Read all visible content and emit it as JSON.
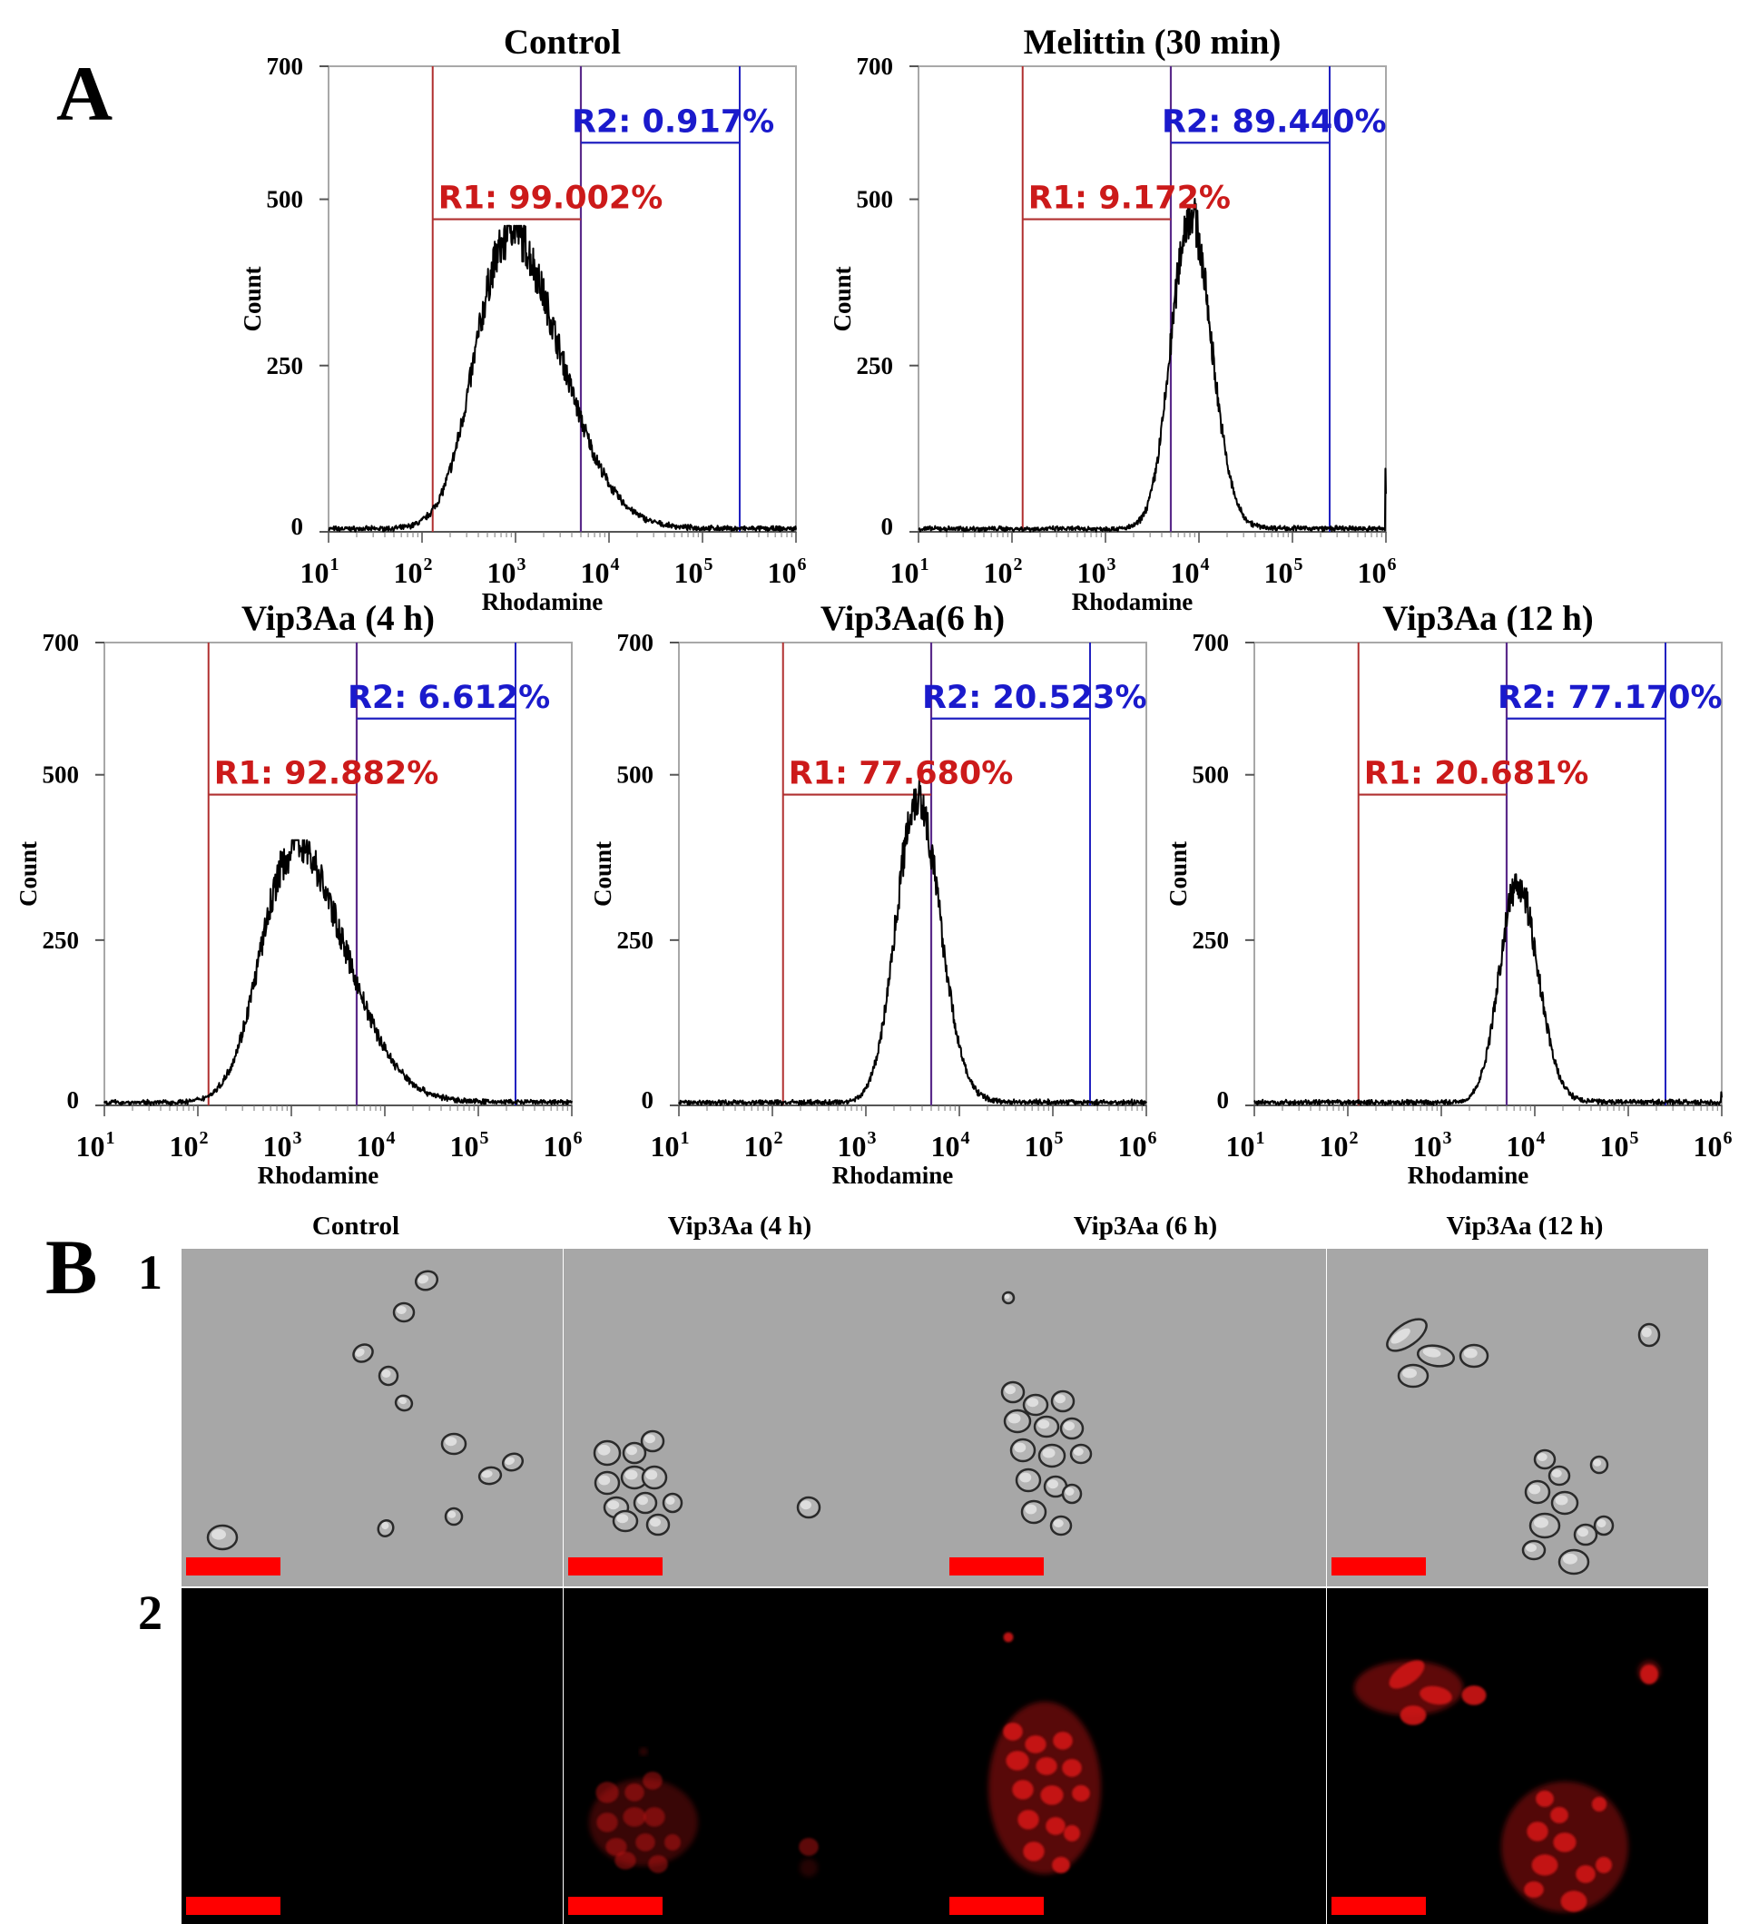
{
  "panel_a": {
    "letter": "A"
  },
  "panel_b": {
    "letter": "B",
    "columns": [
      "Control",
      "Vip3Aa (4 h)",
      "Vip3Aa (6 h)",
      "Vip3Aa (12 h)"
    ],
    "rows": [
      "1",
      "2"
    ],
    "row_descriptions": [
      "bright-field micrographs",
      "rhodamine fluorescence micrographs"
    ]
  },
  "colors": {
    "r1": "#cc1a1a",
    "r1_line": "#b03030",
    "r2": "#1a1acc",
    "r2_line": "#2020c0",
    "histogram": "#000000",
    "scale_bar": "#ff0000",
    "fluorescence": "#d01818"
  },
  "chart_data": [
    {
      "type": "histogram",
      "title": "Control",
      "xlabel": "Rhodamine",
      "ylabel": "Count",
      "x_scale": "log",
      "xlim": [
        10,
        1000000
      ],
      "ylim": [
        0,
        700
      ],
      "yticks": [
        0,
        250,
        500,
        700
      ],
      "xticks": [
        "10",
        "10",
        "10",
        "10",
        "10",
        "10"
      ],
      "xtick_exponents": [
        "1",
        "2",
        "3",
        "4",
        "5",
        "6"
      ],
      "gates": [
        {
          "name": "R1",
          "label": "R1: 99.002%",
          "percent": 99.002,
          "x_range": [
            130,
            5000
          ],
          "marker_y": 470
        },
        {
          "name": "R2",
          "label": "R2: 0.917%",
          "percent": 0.917,
          "x_range": [
            5000,
            250000
          ],
          "marker_y": 585
        }
      ],
      "peak_x": 800,
      "peak_count": 430,
      "spread": 0.34,
      "right_tail": 0.65,
      "end_spike": 0
    },
    {
      "type": "histogram",
      "title": "Melittin (30 min)",
      "xlabel": "Rhodamine",
      "ylabel": "Count",
      "x_scale": "log",
      "xlim": [
        10,
        1000000
      ],
      "ylim": [
        0,
        700
      ],
      "yticks": [
        0,
        250,
        500,
        700
      ],
      "xticks": [
        "10",
        "10",
        "10",
        "10",
        "10",
        "10"
      ],
      "xtick_exponents": [
        "1",
        "2",
        "3",
        "4",
        "5",
        "6"
      ],
      "gates": [
        {
          "name": "R1",
          "label": "R1: 9.172%",
          "percent": 9.172,
          "x_range": [
            130,
            5000
          ],
          "marker_y": 470
        },
        {
          "name": "R2",
          "label": "R2: 89.440%",
          "percent": 89.44,
          "x_range": [
            5000,
            250000
          ],
          "marker_y": 585
        }
      ],
      "peak_x": 8000,
      "peak_count": 470,
      "spread": 0.2,
      "right_tail": 0.12,
      "end_spike": 95
    },
    {
      "type": "histogram",
      "title": "Vip3Aa (4 h)",
      "xlabel": "Rhodamine",
      "ylabel": "Count",
      "x_scale": "log",
      "xlim": [
        10,
        1000000
      ],
      "ylim": [
        0,
        700
      ],
      "yticks": [
        0,
        250,
        500,
        700
      ],
      "xticks": [
        "10",
        "10",
        "10",
        "10",
        "10",
        "10"
      ],
      "xtick_exponents": [
        "1",
        "2",
        "3",
        "4",
        "5",
        "6"
      ],
      "gates": [
        {
          "name": "R1",
          "label": "R1: 92.882%",
          "percent": 92.882,
          "x_range": [
            130,
            5000
          ],
          "marker_y": 470
        },
        {
          "name": "R2",
          "label": "R2: 6.612%",
          "percent": 6.612,
          "x_range": [
            5000,
            250000
          ],
          "marker_y": 585
        }
      ],
      "peak_x": 1000,
      "peak_count": 375,
      "spread": 0.33,
      "right_tail": 0.7,
      "end_spike": 0
    },
    {
      "type": "histogram",
      "title": "Vip3Aa(6 h)",
      "xlabel": "Rhodamine",
      "ylabel": "Count",
      "x_scale": "log",
      "xlim": [
        10,
        1000000
      ],
      "ylim": [
        0,
        700
      ],
      "yticks": [
        0,
        250,
        500,
        700
      ],
      "xticks": [
        "10",
        "10",
        "10",
        "10",
        "10",
        "10"
      ],
      "xtick_exponents": [
        "1",
        "2",
        "3",
        "4",
        "5",
        "6"
      ],
      "gates": [
        {
          "name": "R1",
          "label": "R1: 77.680%",
          "percent": 77.68,
          "x_range": [
            130,
            5000
          ],
          "marker_y": 470
        },
        {
          "name": "R2",
          "label": "R2: 20.523%",
          "percent": 20.523,
          "x_range": [
            5000,
            250000
          ],
          "marker_y": 585
        }
      ],
      "peak_x": 3500,
      "peak_count": 460,
      "spread": 0.22,
      "right_tail": 0.12,
      "end_spike": 0
    },
    {
      "type": "histogram",
      "title": "Vip3Aa (12 h)",
      "xlabel": "Rhodamine",
      "ylabel": "Count",
      "x_scale": "log",
      "xlim": [
        10,
        1000000
      ],
      "ylim": [
        0,
        700
      ],
      "yticks": [
        0,
        250,
        500,
        700
      ],
      "xticks": [
        "10",
        "10",
        "10",
        "10",
        "10",
        "10"
      ],
      "xtick_exponents": [
        "1",
        "2",
        "3",
        "4",
        "5",
        "6"
      ],
      "gates": [
        {
          "name": "R1",
          "label": "R1: 20.681%",
          "percent": 20.681,
          "x_range": [
            130,
            5000
          ],
          "marker_y": 470
        },
        {
          "name": "R2",
          "label": "R2: 77.170%",
          "percent": 77.17,
          "x_range": [
            5000,
            250000
          ],
          "marker_y": 585
        }
      ],
      "peak_x": 6500,
      "peak_count": 330,
      "spread": 0.19,
      "right_tail": 0.14,
      "end_spike": 20
    }
  ]
}
